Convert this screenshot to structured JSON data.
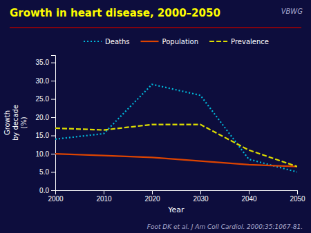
{
  "chart_data": {
    "type": "line",
    "title": "Growth in heart disease, 2000–2050",
    "x_label": "Year",
    "y_label": "Growth\nby decade\n(%)",
    "annotations": [
      "VBWG",
      "Foot DK et al. J Am Coll Cardiol. 2000;35:1067-81."
    ],
    "x": [
      2000,
      2010,
      2020,
      2030,
      2040,
      2050
    ],
    "series": [
      {
        "name": "Deaths",
        "color": "#00bbdd",
        "line_style": "dotted",
        "values": [
          14.0,
          15.5,
          29.0,
          26.0,
          8.5,
          5.0
        ]
      },
      {
        "name": "Population",
        "color": "#dd4400",
        "line_style": "solid",
        "values": [
          10.0,
          9.5,
          9.0,
          8.0,
          7.0,
          6.5
        ]
      },
      {
        "name": "Prevalence",
        "color": "#dddd00",
        "line_style": "dashed",
        "values": [
          17.0,
          16.5,
          18.0,
          18.0,
          11.0,
          6.5
        ]
      }
    ],
    "xlim": [
      2000,
      2050
    ],
    "xticks": [
      2000,
      2010,
      2020,
      2030,
      2040,
      2050
    ],
    "ylim": [
      0.0,
      37.0
    ],
    "yticks": [
      {
        "value": 0.0,
        "label": "0.0"
      },
      {
        "value": 5.0,
        "label": "5.0"
      },
      {
        "value": 10.0,
        "label": "10.0"
      },
      {
        "value": 15.0,
        "label": "15.0"
      },
      {
        "value": 20.0,
        "label": "20.0"
      },
      {
        "value": 25.0,
        "label": "25.0"
      },
      {
        "value": 30.0,
        "label": "30.0"
      },
      {
        "value": 35.0,
        "label": "35.0"
      }
    ],
    "grid": false,
    "legend": "top"
  }
}
